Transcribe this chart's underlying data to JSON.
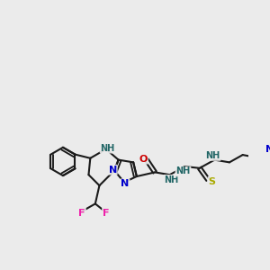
{
  "bg_color": "#ebebeb",
  "bond_color": "#1a1a1a",
  "bond_lw": 1.5,
  "dbl_off": 2.2,
  "colors": {
    "N": "#0000cc",
    "O": "#cc0000",
    "F": "#ee22aa",
    "S": "#aaaa00",
    "NH": "#226666",
    "C": "#1a1a1a"
  },
  "fs": 8.0,
  "fss": 7.0
}
